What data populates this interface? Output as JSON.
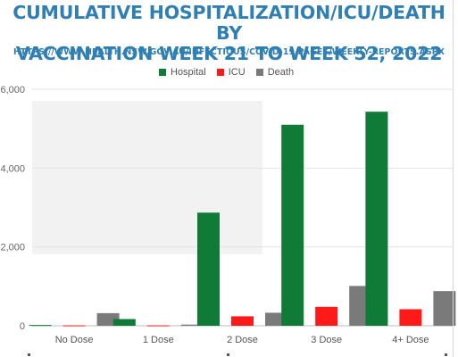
{
  "title_line1": "CUMULATIVE HOSPITALIZATION/ICU/DEATH BY",
  "title_line2": "VACCINATION WEEK 21 TO WEEK 52, 2022",
  "subtitle": "HTTPS://WWW.HEALTH.NSW.GOV.AU/INFECTIOUS/COVID-19/PAGES/WEEKLY-REPORTS.ASPX",
  "colors": {
    "title": "#2f7fb3",
    "Hospital": "#0f7b36",
    "ICU": "#ff1a1a",
    "Death": "#7a7a7a"
  },
  "chart_data": {
    "type": "bar",
    "categories": [
      "No Dose",
      "1 Dose",
      "2 Dose",
      "3 Dose",
      "4+ Dose"
    ],
    "series": [
      {
        "name": "Hospital",
        "values": [
          20,
          170,
          2870,
          5100,
          5430
        ]
      },
      {
        "name": "ICU",
        "values": [
          10,
          10,
          240,
          480,
          420
        ]
      },
      {
        "name": "Death",
        "values": [
          320,
          30,
          330,
          1010,
          880
        ]
      }
    ],
    "yticks": [
      "0",
      "2,000",
      "4,000",
      "6,000"
    ],
    "ytick_values": [
      0,
      2000,
      4000,
      6000
    ],
    "ylim": [
      0,
      6000
    ],
    "legend_position": "top-center",
    "grid": true
  }
}
